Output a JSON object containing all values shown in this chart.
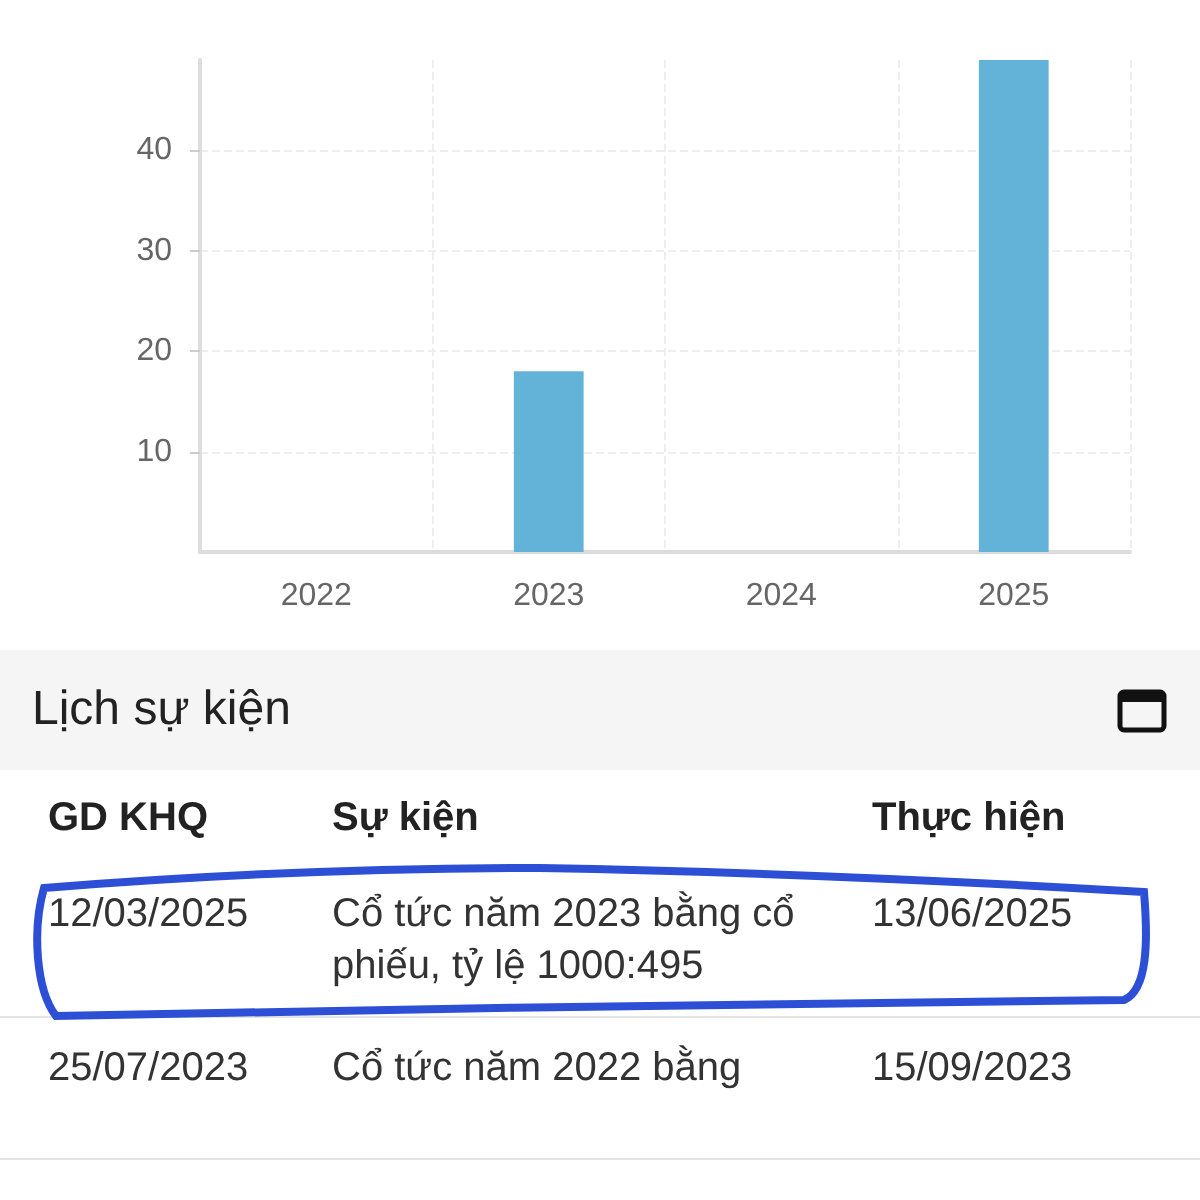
{
  "chart_data": {
    "type": "bar",
    "categories": [
      "2022",
      "2023",
      "2024",
      "2025"
    ],
    "values": [
      0,
      18,
      0,
      49
    ],
    "color": "#63b3d9",
    "ylim": [
      0,
      49
    ],
    "yticks": [
      10,
      20,
      30,
      40
    ],
    "grid": true,
    "annotations": [
      "Lịch sự kiện",
      "GD KHQ",
      "Sự kiện",
      "Thực hiện",
      "12/03/2025",
      "Cổ tức năm 2023 bằng cổ phiếu, tỷ lệ 1000:495",
      "13/06/2025",
      "25/07/2023",
      "Cổ tức năm 2022 bằng",
      "15/09/2023"
    ]
  }
}
